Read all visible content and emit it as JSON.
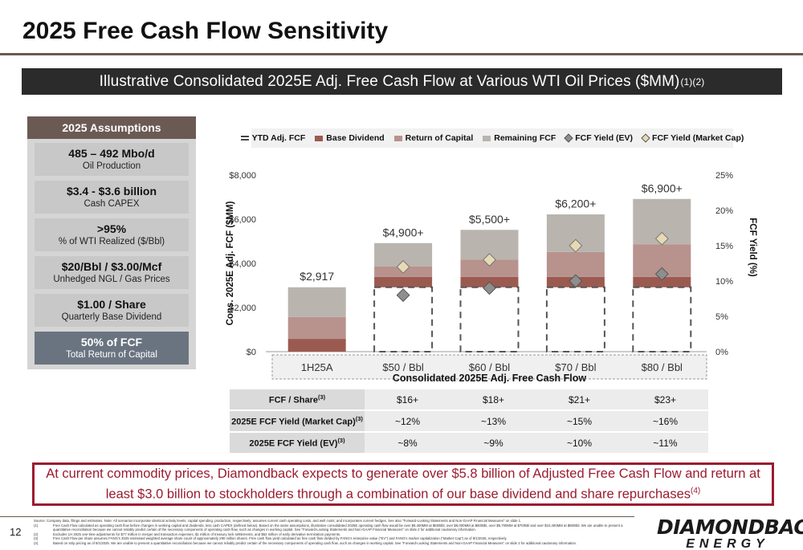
{
  "title": "2025 Free Cash Flow Sensitivity",
  "banner": {
    "text": "Illustrative Consolidated 2025E Adj. Free Cash Flow at Various WTI Oil Prices ($MM)",
    "sup": "(1)(2)"
  },
  "assumptions": {
    "header": "2025 Assumptions",
    "items": [
      {
        "big": "485 – 492 Mbo/d",
        "small": "Oil Production"
      },
      {
        "big": "$3.4 - $3.6 billion",
        "small": "Cash CAPEX"
      },
      {
        "big": ">95%",
        "small": "% of WTI Realized ($/Bbl)"
      },
      {
        "big": "$20/Bbl / $3.00/Mcf",
        "small": "Unhedged NGL / Gas Prices"
      },
      {
        "big": "$1.00 / Share",
        "small": "Quarterly Base Dividend"
      },
      {
        "big": "50% of FCF",
        "small": "Total Return of Capital"
      }
    ]
  },
  "colors": {
    "base_dividend": "#9b5a50",
    "return_of_capital": "#b8928d",
    "remaining_fcf": "#b9b4ae",
    "ytd": "#9b5a50",
    "fcf_yield_ev": "#8e8e8e",
    "fcf_yield_mkt": "#e8d9b5",
    "callout": "#9b1b30"
  },
  "chart_data": {
    "type": "bar",
    "xlabel": "Consolidated 2025E Adj. Free Cash Flow",
    "ylabel": "Cons. 2025E Adj. FCF ($MM)",
    "y2label": "FCF Yield (%)",
    "categories": [
      "1H25A",
      "$50 / Bbl",
      "$60 / Bbl",
      "$70 / Bbl",
      "$80 / Bbl"
    ],
    "ylim": [
      0,
      8000
    ],
    "yticks": [
      "$0",
      "$2,000",
      "$4,000",
      "$6,000",
      "$8,000"
    ],
    "y2lim": [
      0,
      25
    ],
    "y2ticks": [
      "0%",
      "5%",
      "10%",
      "15%",
      "20%",
      "25%"
    ],
    "legend_position": "top",
    "legend": [
      "YTD Adj. FCF",
      "Base Dividend",
      "Return of Capital",
      "Remaining FCF",
      "FCF Yield (EV)",
      "FCF Yield (Market Cap)"
    ],
    "total_labels": [
      "$2,917",
      "$4,900+",
      "$5,500+",
      "$6,200+",
      "$6,900+"
    ],
    "totals": [
      2917,
      4900,
      5500,
      6200,
      6900
    ],
    "series": [
      {
        "name": "Base Dividend",
        "values": [
          580,
          470,
          470,
          470,
          470
        ]
      },
      {
        "name": "Return of Capital",
        "values": [
          990,
          480,
          780,
          1130,
          1480
        ]
      },
      {
        "name": "Remaining FCF",
        "values": [
          1347,
          1050,
          1350,
          1700,
          2050
        ]
      },
      {
        "name": "FCF Yield (EV)",
        "values": [
          null,
          8,
          9,
          10,
          11
        ]
      },
      {
        "name": "FCF Yield (Market Cap)",
        "values": [
          null,
          12,
          13,
          15,
          16
        ]
      }
    ],
    "ytd_dashed_value": 2917
  },
  "table": {
    "rows": [
      {
        "label": "FCF / Share",
        "sup": "(3)",
        "values": [
          "$16+",
          "$18+",
          "$21+",
          "$23+"
        ]
      },
      {
        "label": "2025E FCF Yield (Market Cap)",
        "sup": "(3)",
        "values": [
          "~12%",
          "~13%",
          "~15%",
          "~16%"
        ]
      },
      {
        "label": "2025E FCF Yield (EV)",
        "sup": "(3)",
        "values": [
          "~8%",
          "~9%",
          "~10%",
          "~11%"
        ]
      }
    ]
  },
  "callout": {
    "text": "At current commodity prices, Diamondback expects to generate over $5.8 billion of Adjusted Free Cash Flow and return at least $3.0 billion to stockholders through a combination of our base dividend and share repurchases",
    "sup": "(4)"
  },
  "page_number": "12",
  "footnotes": {
    "source": "Source: Company data, filings and estimates. Note: All scenarios incorporate identical activity levels, capital spending, production, respectively; assumes current cash operating costs, and well costs; and incorporates current hedges. See also \"Forward-Looking Statements and Non-GAAP Financial Measures\" on slide 1.",
    "items": [
      {
        "n": "(1)",
        "text": "Free Cash Flow calculated as operating cash flow before changes in working capital and dividends, less cash CAPEX (defined below). Based on the same assumptions, illustrative consolidated 2025E operating cash flow would be over $8,400MM at $50/Bbl, over $9,000MM at $60/Bbl, over $9,700MM at $70/Bbl and over $10,400MM at $80/Bbl. We are unable to present a quantitative reconciliation because we cannot reliably predict certain of the necessary components of operating cash flow, such as changes in working capital. See \"Forward-Looking Statements and Non-GAAP Financial Measures\" on slide 2 for additional cautionary information."
      },
      {
        "n": "(2)",
        "text": "Excludes 1H 2025 one-time adjustments for $77 million in merger and transaction expenses, $1 million of treasury lock settlements, and $52 million of early derivative termination payments."
      },
      {
        "n": "(3)",
        "text": "Free Cash Flow per share assumes FANG's 2025 estimated weighted average share count of approximately 290 million shares. Free cash flow yield calculated as free cash flow divided by FANG's enterprise value (\"EV\") and FANG's market capitalization (\"Market Cap\") as of 8/1/2025, respectively."
      },
      {
        "n": "(4)",
        "text": "Based on strip pricing as of 8/1/2025. We are unable to present a quantitative reconciliation because we cannot reliably predict certain of the necessary components of operating cash flow, such as changes in working capital. See \"Forward-Looking Statements and Non-GAAP Financial Measures\" on slide 2 for additional cautionary information."
      }
    ]
  },
  "logo": {
    "line1": "DIAMONDBACK",
    "line2": "ENERGY"
  }
}
